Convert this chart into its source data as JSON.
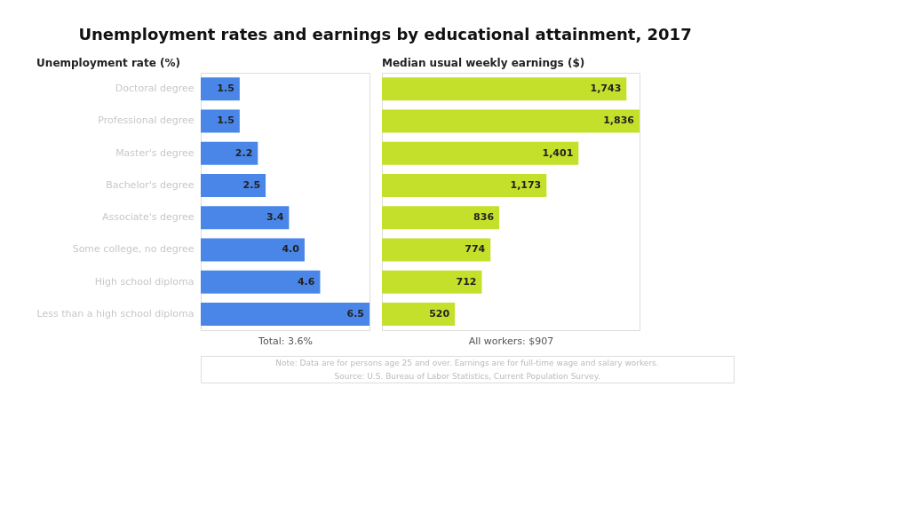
{
  "chart_data": [
    {
      "type": "bar",
      "orientation": "horizontal",
      "title": "Unemployment rates and earnings by educational attainment, 2017",
      "subtitle": "Unemployment rate (%)",
      "categories": [
        "Doctoral degree",
        "Professional degree",
        "Master's degree",
        "Bachelor's degree",
        "Associate's degree",
        "Some college, no degree",
        "High school diploma",
        "Less than a high school diploma"
      ],
      "values": [
        1.5,
        1.5,
        2.2,
        2.5,
        3.4,
        4.0,
        4.6,
        6.5
      ],
      "value_labels": [
        "1.5",
        "1.5",
        "2.2",
        "2.5",
        "3.4",
        "4.0",
        "4.6",
        "6.5"
      ],
      "color": "#4a86e8",
      "tick_labels": "y",
      "grid": false,
      "annotations": [
        "Total: 3.6%"
      ]
    },
    {
      "type": "bar",
      "orientation": "horizontal",
      "subtitle": "Median usual weekly earnings ($)",
      "categories": [
        null,
        null,
        null,
        null,
        null,
        null,
        null,
        null
      ],
      "values": [
        1743,
        1836,
        1401,
        1173,
        836,
        774,
        712,
        520
      ],
      "value_labels": [
        "1,743",
        "1,836",
        "1,401",
        "1,173",
        "836",
        "774",
        "712",
        "520"
      ],
      "color": "#c5e02b",
      "tick_labels": false,
      "grid": false,
      "annotations": [
        "All workers: $907",
        "Note: Data are for persons age 25 and over. Earnings are for full-time wage and salary workers.",
        "Source: U.S. Bureau of Labor Statistics, Current Population Survey."
      ]
    }
  ]
}
